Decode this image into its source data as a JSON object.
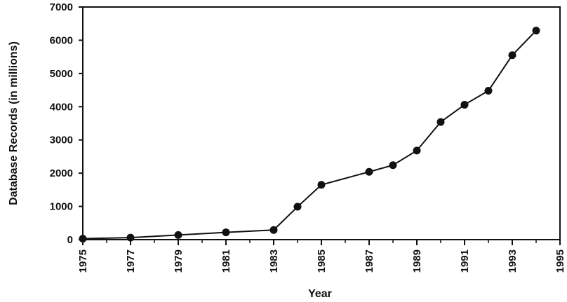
{
  "chart_data": {
    "type": "line",
    "title": "",
    "xlabel": "Year",
    "ylabel": "Database Records (in millions)",
    "xlim": [
      1975,
      1995
    ],
    "ylim": [
      0,
      7000
    ],
    "x_ticks": [
      "1975",
      "1977",
      "1979",
      "1981",
      "1983",
      "1985",
      "1987",
      "1989",
      "1991",
      "1993",
      "1995"
    ],
    "y_ticks": [
      "0",
      "1000",
      "2000",
      "3000",
      "4000",
      "5000",
      "6000",
      "7000"
    ],
    "grid": false,
    "legend": "none",
    "series": [
      {
        "x": [
          1975,
          1977,
          1979,
          1981,
          1983,
          1984,
          1985,
          1987,
          1988,
          1989,
          1990,
          1991,
          1992,
          1993,
          1994
        ],
        "y": [
          30,
          60,
          140,
          220,
          290,
          990,
          1650,
          2040,
          2240,
          2680,
          3540,
          4060,
          4480,
          5550,
          6290
        ]
      }
    ],
    "colors": {
      "line": "#111111",
      "marker": "#111111"
    }
  }
}
